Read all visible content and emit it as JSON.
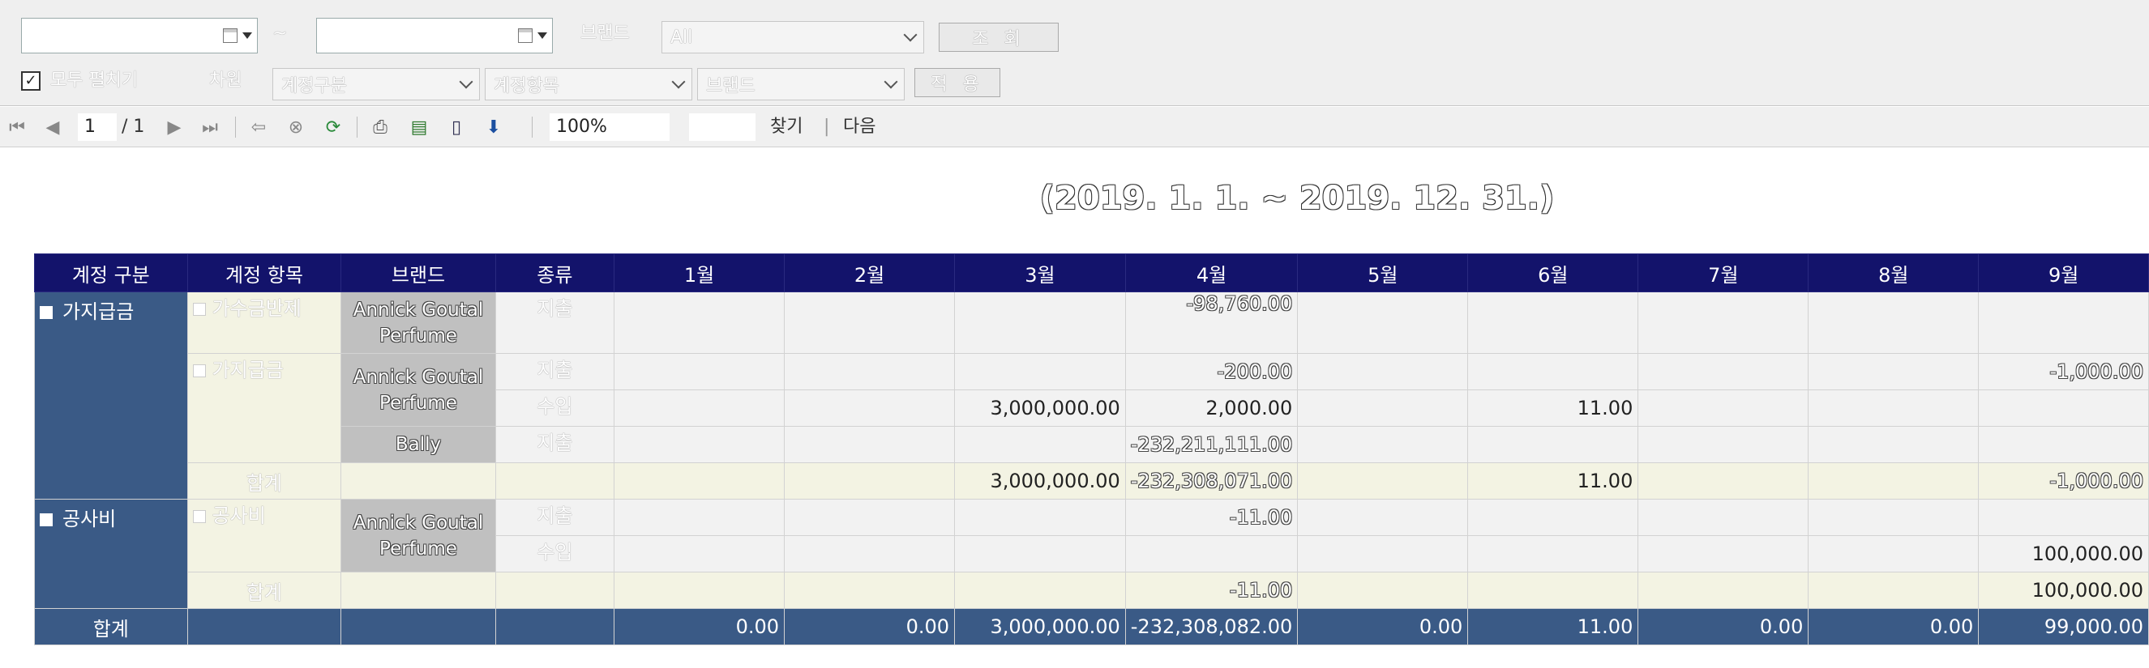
{
  "filter": {
    "date_from": "",
    "date_to": "",
    "tilde": "~",
    "brand_label": "브랜드",
    "brand_value": "All",
    "search_button": "조 회",
    "expand_all_label": "모두 펼치기",
    "expand_all_checked": "✓",
    "dimension_label": "차원",
    "dimension_1": "계정구분",
    "dimension_2": "계정항목",
    "dimension_3": "브랜드",
    "apply_button": "적 용"
  },
  "toolbar": {
    "current_page": "1",
    "total_pages": "/ 1",
    "zoom": "100%",
    "find_input": "",
    "find_label": "찾기",
    "separator": "|",
    "next_label": "다음"
  },
  "report": {
    "title": "(2019. 1. 1. ~ 2019. 12. 31.)",
    "headers": [
      "계정 구분",
      "계정 항목",
      "브랜드",
      "종류",
      "1월",
      "2월",
      "3월",
      "4월",
      "5월",
      "6월",
      "7월",
      "8월",
      "9월"
    ],
    "groups": {
      "g1": {
        "name": "가지급금"
      },
      "g2": {
        "name": "공사비"
      }
    },
    "items": {
      "i1": "가수금반제",
      "i2": "가지급금",
      "i3": "공사비"
    },
    "brands": {
      "b1": "Annick Goutal Perfume",
      "b2": "Annick Goutal Perfume",
      "b3": "Bally",
      "b4": "Annick Goutal Perfume"
    },
    "kinds": {
      "out": "지출",
      "in": "수입"
    },
    "subtotal_label": "합계",
    "total_label": "합계",
    "rows": {
      "r1": [
        "",
        "",
        "",
        "-98,760.00",
        "",
        "",
        "",
        "",
        ""
      ],
      "r2": [
        "",
        "",
        "",
        "-200.00",
        "",
        "",
        "",
        "",
        "-1,000.00"
      ],
      "r3": [
        "",
        "",
        "3,000,000.00",
        "2,000.00",
        "",
        "11.00",
        "",
        "",
        ""
      ],
      "r4": [
        "",
        "",
        "",
        "-232,211,111.00",
        "",
        "",
        "",
        "",
        ""
      ],
      "s1": [
        "",
        "",
        "3,000,000.00",
        "-232,308,071.00",
        "",
        "11.00",
        "",
        "",
        "-1,000.00"
      ],
      "r5": [
        "",
        "",
        "",
        "-11.00",
        "",
        "",
        "",
        "",
        ""
      ],
      "r6": [
        "",
        "",
        "",
        "",
        "",
        "",
        "",
        "",
        "100,000.00"
      ],
      "s2": [
        "",
        "",
        "",
        "-11.00",
        "",
        "",
        "",
        "",
        "100,000.00"
      ],
      "t": [
        "0.00",
        "0.00",
        "3,000,000.00",
        "-232,308,082.00",
        "0.00",
        "11.00",
        "0.00",
        "0.00",
        "99,000.00"
      ]
    }
  }
}
